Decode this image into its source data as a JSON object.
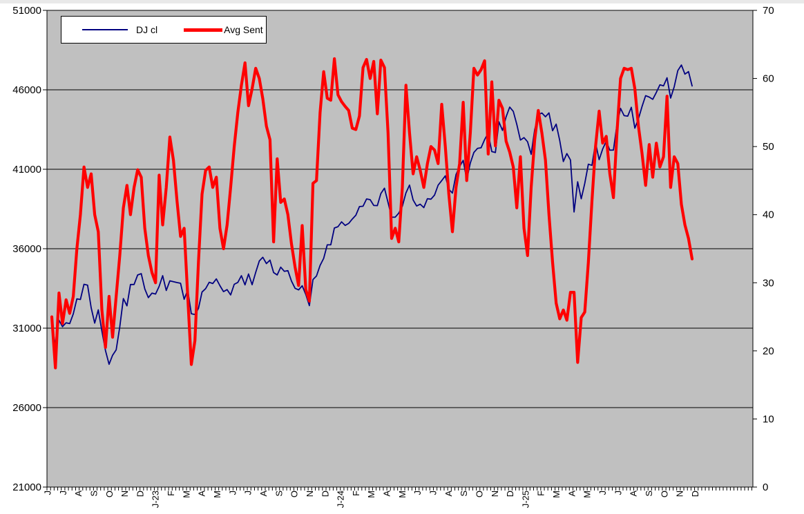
{
  "chart_data": {
    "type": "line",
    "title": "",
    "frequency": "weekly",
    "legend_position": "top-left",
    "plot_bg": "#C0C0C0",
    "grid_color": "#000000",
    "categories": [
      "J",
      "J",
      "A",
      "S",
      "O",
      "N",
      "D",
      "J-23",
      "F",
      "M",
      "A",
      "M",
      "J",
      "J",
      "A",
      "S",
      "O",
      "N",
      "D",
      "J-24",
      "F",
      "M",
      "A",
      "M",
      "J",
      "J",
      "A",
      "S",
      "O",
      "N",
      "D",
      "J-25",
      "F",
      "M",
      "A",
      "M",
      "J",
      "J",
      "A",
      "S",
      "O",
      "N",
      "D"
    ],
    "left_axis": {
      "min": 21000,
      "max": 51000,
      "ticks": [
        51000,
        46000,
        41000,
        36000,
        31000,
        26000,
        21000
      ]
    },
    "right_axis": {
      "min": 0,
      "max": 70,
      "ticks": [
        70,
        60,
        50,
        40,
        30,
        20,
        10,
        0
      ]
    },
    "gridlines_left_values": [
      46000,
      41000,
      36000,
      31000,
      26000
    ],
    "series": [
      {
        "name": "DJ cl",
        "axis": "left",
        "color": "#000080",
        "stroke_width": 1.8,
        "values": [
          31392,
          29888,
          31500,
          31097,
          31338,
          31288,
          31899,
          32845,
          32803,
          33761,
          33706,
          32283,
          31318,
          32152,
          30822,
          29590,
          28725,
          29297,
          29635,
          31083,
          32862,
          32403,
          33748,
          33746,
          34347,
          34430,
          33476,
          32920,
          33204,
          33147,
          33631,
          34303,
          33375,
          33978,
          33926,
          33869,
          33827,
          32817,
          33391,
          31910,
          31862,
          32238,
          33274,
          33485,
          33886,
          33809,
          34098,
          33674,
          33301,
          33427,
          33093,
          33763,
          33877,
          34299,
          33727,
          34408,
          33735,
          34509,
          35228,
          35459,
          35066,
          35281,
          34501,
          34347,
          34838,
          34577,
          34618,
          33964,
          33508,
          33408,
          33670,
          33127,
          32418,
          34061,
          34283,
          34947,
          35390,
          36245,
          36248,
          37305,
          37386,
          37690,
          37466,
          37593,
          37864,
          38109,
          38654,
          38672,
          39132,
          39087,
          38723,
          38715,
          39475,
          39807,
          38904,
          37983,
          37986,
          38240,
          38676,
          39513,
          40004,
          39070,
          38686,
          38799,
          38589,
          39150,
          39119,
          39376,
          40001,
          40288,
          40589,
          39737,
          39498,
          40660,
          41175,
          41563,
          40345,
          41394,
          42063,
          42313,
          42353,
          42864,
          43276,
          42114,
          42052,
          43989,
          43445,
          44297,
          44911,
          44643,
          43828,
          42840,
          42992,
          42732,
          41938,
          43488,
          44424,
          44545,
          44303,
          44546,
          43428,
          43841,
          42802,
          41488,
          41985,
          41584,
          38315,
          40213,
          39142,
          40114,
          41317,
          41249,
          42655,
          41603,
          42270,
          42763,
          42198,
          42207,
          43819,
          44829,
          44372,
          44342,
          44902,
          43589,
          44176,
          44946,
          45632,
          45545,
          45401,
          45834,
          46315,
          46247,
          46758,
          45480,
          46190,
          47207,
          47563,
          46987,
          47147,
          46245
        ]
      },
      {
        "name": "Avg Sent",
        "axis": "right",
        "color": "#FF0000",
        "stroke_width": 4.2,
        "values": [
          25,
          17.5,
          28.5,
          24,
          27.5,
          25.5,
          28,
          35,
          40,
          47,
          44,
          46,
          40,
          37.5,
          26,
          20.5,
          28,
          22,
          28,
          34,
          41,
          44.3,
          40,
          44,
          46.6,
          45.5,
          38,
          34,
          31.5,
          30,
          45.8,
          38.5,
          44,
          51.4,
          48,
          42,
          36.8,
          38,
          28,
          18,
          21.5,
          33,
          43,
          46.5,
          47,
          44,
          45.5,
          38,
          35,
          38.5,
          44,
          50,
          55,
          59,
          62.3,
          56,
          58.5,
          61.5,
          60,
          57,
          53,
          51,
          36,
          48.2,
          41.8,
          42.3,
          40,
          35.7,
          32.3,
          29.6,
          38.4,
          29,
          27.3,
          44.6,
          45,
          55,
          61,
          57.1,
          56.8,
          62.9,
          57.6,
          56.6,
          55.9,
          55.3,
          52.7,
          52.5,
          54.5,
          61.6,
          62.8,
          60,
          62.5,
          54.8,
          62.7,
          61.6,
          52,
          36.5,
          38,
          36,
          44,
          59,
          52,
          46,
          48.5,
          46.5,
          44,
          47.5,
          50,
          49.5,
          47.5,
          56.2,
          50,
          43,
          37.5,
          44,
          47.5,
          56.5,
          45,
          52,
          61.5,
          60.5,
          61.3,
          62.6,
          48.9,
          59.5,
          50.1,
          56.8,
          55.6,
          50.8,
          49.2,
          47,
          41,
          48.5,
          38,
          34,
          44,
          51,
          55.3,
          52,
          48,
          40,
          33,
          27,
          24.7,
          26,
          24.5,
          28.6,
          28.6,
          18.3,
          24.9,
          25.7,
          33,
          42,
          50,
          55.2,
          50.5,
          51.5,
          46,
          42.5,
          52,
          60,
          61.5,
          61.3,
          61.5,
          58.5,
          53,
          49,
          44.3,
          50.3,
          45.5,
          50.5,
          47,
          48.5,
          57.4,
          44,
          48.5,
          47.5,
          41.5,
          38.5,
          36.5,
          33.5
        ]
      }
    ]
  }
}
